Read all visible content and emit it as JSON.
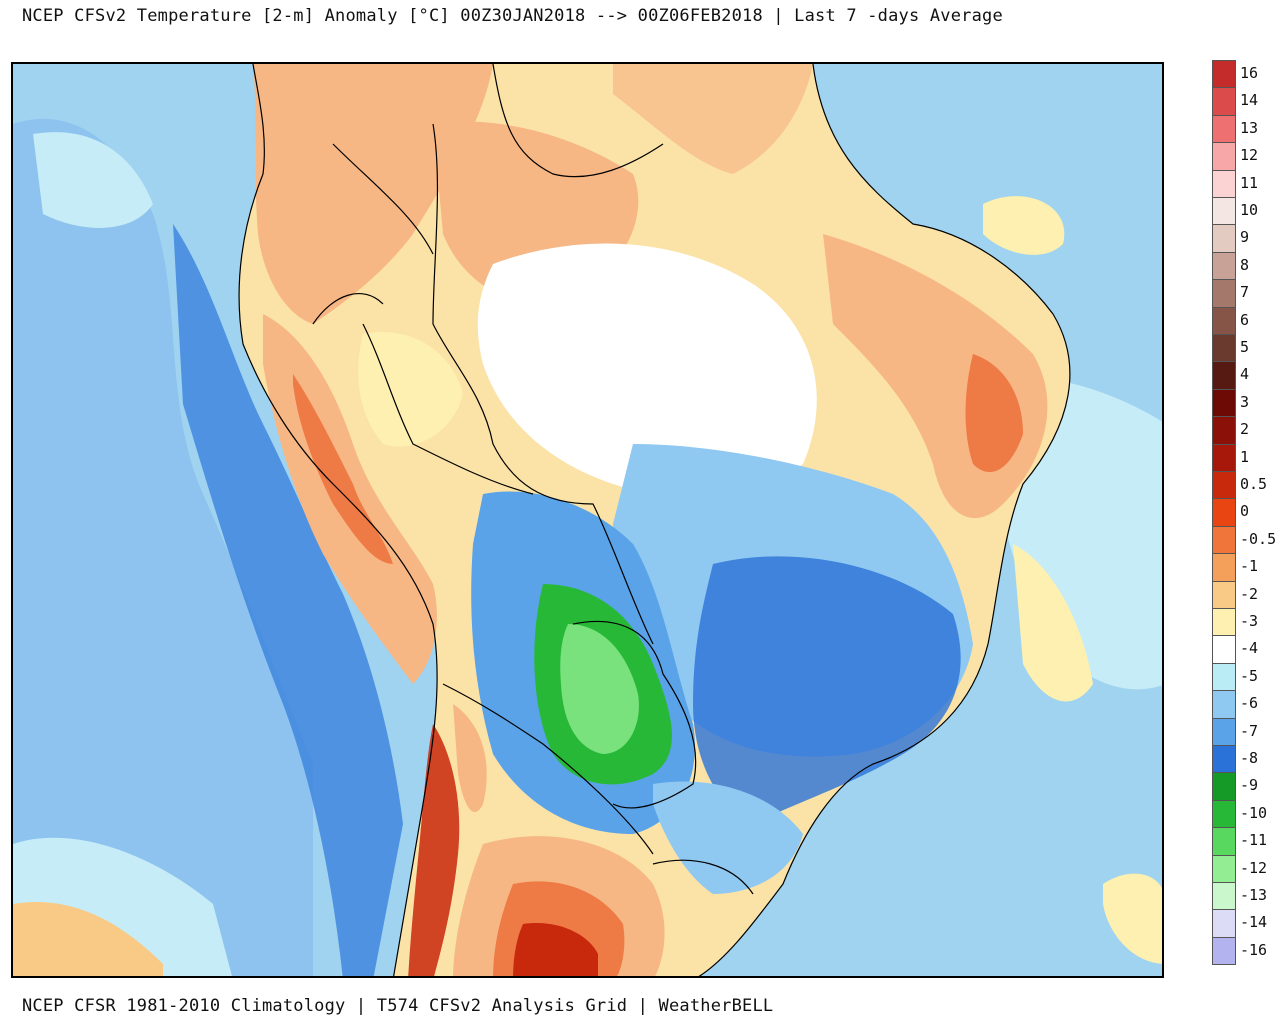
{
  "header": {
    "title": "NCEP CFSv2 Temperature [2-m] Anomaly  [°C] 00Z30JAN2018 --> 00Z06FEB2018 | Last 7 -days Average"
  },
  "footer": {
    "text": "NCEP CFSR 1981-2010 Climatology | T574 CFSv2 Analysis Grid | WeatherBELL"
  },
  "legend": {
    "unit": "°C",
    "entries": [
      {
        "label": "16",
        "color": "#c42b2b"
      },
      {
        "label": "14",
        "color": "#dc4b4b"
      },
      {
        "label": "13",
        "color": "#ee7070"
      },
      {
        "label": "12",
        "color": "#f7a7a7"
      },
      {
        "label": "11",
        "color": "#fbd3d3"
      },
      {
        "label": "10",
        "color": "#f4e6e2"
      },
      {
        "label": "9",
        "color": "#e4cbc2"
      },
      {
        "label": "8",
        "color": "#c9a297"
      },
      {
        "label": "7",
        "color": "#a5786c"
      },
      {
        "label": "6",
        "color": "#875548"
      },
      {
        "label": "5",
        "color": "#6b3a2e"
      },
      {
        "label": "4",
        "color": "#571a12"
      },
      {
        "label": "3",
        "color": "#6e0a06"
      },
      {
        "label": "2",
        "color": "#8a1008"
      },
      {
        "label": "1",
        "color": "#a8180a"
      },
      {
        "label": "0.5",
        "color": "#c8280c"
      },
      {
        "label": "0",
        "color": "#e84512"
      },
      {
        "label": "-0.5",
        "color": "#f0753a"
      },
      {
        "label": "-1",
        "color": "#f5a05a"
      },
      {
        "label": "-2",
        "color": "#f9ca85"
      },
      {
        "label": "-3",
        "color": "#fdf0b0"
      },
      {
        "label": "-4",
        "color": "#ffffff"
      },
      {
        "label": "-5",
        "color": "#b9ecf5"
      },
      {
        "label": "-6",
        "color": "#8fc8f1"
      },
      {
        "label": "-7",
        "color": "#5aa3e8"
      },
      {
        "label": "-8",
        "color": "#2b72d8"
      },
      {
        "label": "-9",
        "color": "#159a27"
      },
      {
        "label": "-10",
        "color": "#28b838"
      },
      {
        "label": "-11",
        "color": "#58d85e"
      },
      {
        "label": "-12",
        "color": "#93ee93"
      },
      {
        "label": "-13",
        "color": "#cbf7cc"
      },
      {
        "label": "-14",
        "color": "#dcdcf7"
      },
      {
        "label": "-16",
        "color": "#b3b3f0"
      }
    ],
    "extra_colors": [
      "#8e8ee6",
      "#6b6bdc",
      "#4a4acc",
      "#2a2ab4",
      "#1e1e98",
      "#5a1466",
      "#7a1480",
      "#a01aa0",
      "#c828c0",
      "#e858dc",
      "#f090ec"
    ]
  },
  "map": {
    "region": "South America",
    "colors": {
      "ocean_cool": "#9fd3f0",
      "ocean_light": "#c6ecf7",
      "land_warm": "#f7b784",
      "land_hot": "#ee7a45",
      "land_mild": "#fbe3a8",
      "neutral": "#ffffff",
      "cold": "#5aa3e8",
      "very_cold": "#2b72d8",
      "green_core": "#28b838",
      "green_light": "#79e27c",
      "red_core": "#c8280c",
      "border": "#000000"
    }
  }
}
